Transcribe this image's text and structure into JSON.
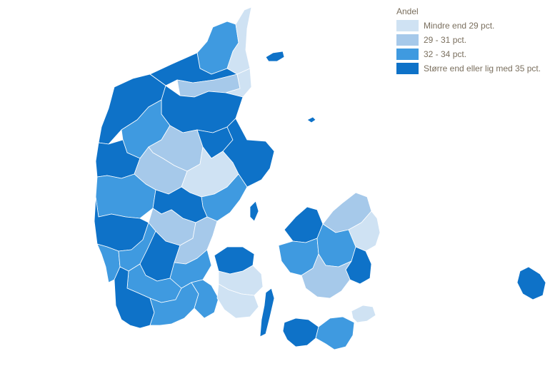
{
  "legend": {
    "title": "Andel",
    "items": [
      {
        "label": "Mindre end 29 pct.",
        "color": "#cfe2f3"
      },
      {
        "label": "29 - 31 pct.",
        "color": "#a6c9ea"
      },
      {
        "label": "32 - 34 pct.",
        "color": "#3f9ae0"
      },
      {
        "label": "Større end eller lig med 35 pct.",
        "color": "#0e72c8"
      }
    ]
  },
  "map_data": {
    "type": "choropleth",
    "region_classes": {
      "vendsyssel-north": 2,
      "skagen-tip": 0,
      "vendsyssel-west": 3,
      "hjorring-area": 1,
      "frederikshavn": 0,
      "thy-west": 3,
      "mors-salling": 2,
      "himmerland": 1,
      "aalborg-east": 3,
      "mariagerfjord": 3,
      "djursland": 3,
      "ringkobing-north": 3,
      "viborg": 1,
      "randers": 0,
      "aarhus": 2,
      "herning": 2,
      "silkeborg": 3,
      "skanderborg": 1,
      "west-jutland": 3,
      "esbjerg": 2,
      "vejle": 1,
      "horsens": 2,
      "varde-coast": 2,
      "billund": 3,
      "kolding": 2,
      "south-jutland-west": 3,
      "sonderborg": 2,
      "aabenraa": 2,
      "fyn-north": 3,
      "fyn-center": 0,
      "fyn-south": 0,
      "langeland": 3,
      "odsherred": 3,
      "north-zealand": 1,
      "copenhagen": 0,
      "west-zealand": 2,
      "central-zealand": 2,
      "koge": 3,
      "naestved": 1,
      "lolland": 3,
      "falster": 2,
      "mon": 0,
      "anholt": 3,
      "laeso": 3,
      "samso": 3,
      "bornholm": 3
    }
  }
}
